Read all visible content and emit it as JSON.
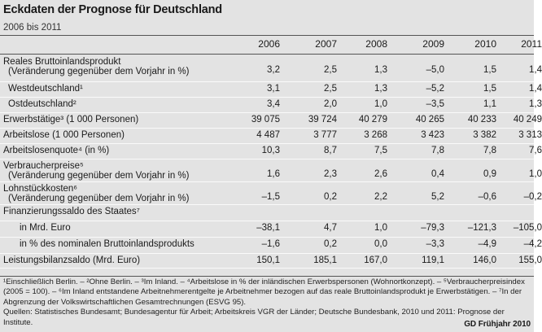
{
  "title": "Eckdaten der Prognose für Deutschland",
  "subtitle": "2006 bis 2011",
  "years": [
    "2006",
    "2007",
    "2008",
    "2009",
    "2010",
    "2011"
  ],
  "rows": [
    {
      "label": "Reales Bruttoinlandsprodukt",
      "sub": "(Veränderung gegenüber dem Vorjahr in %)",
      "indent": 0,
      "values": [
        "3,2",
        "2,5",
        "1,3",
        "–5,0",
        "1,5",
        "1,4"
      ]
    },
    {
      "label": "Westdeutschland¹",
      "sub": "",
      "indent": 1,
      "values": [
        "3,1",
        "2,5",
        "1,3",
        "–5,2",
        "1,5",
        "1,4"
      ]
    },
    {
      "label": "Ostdeutschland²",
      "sub": "",
      "indent": 1,
      "values": [
        "3,4",
        "2,0",
        "1,0",
        "–3,5",
        "1,1",
        "1,3"
      ]
    },
    {
      "label": "Erwerbstätige³ (1 000 Personen)",
      "sub": "",
      "indent": 0,
      "values": [
        "39 075",
        "39 724",
        "40 279",
        "40 265",
        "40 233",
        "40 249"
      ]
    },
    {
      "label": "Arbeitslose (1 000 Personen)",
      "sub": "",
      "indent": 0,
      "values": [
        "4 487",
        "3 777",
        "3 268",
        "3 423",
        "3 382",
        "3 313"
      ]
    },
    {
      "label": "Arbeitslosenquote⁴ (in %)",
      "sub": "",
      "indent": 0,
      "values": [
        "10,3",
        "8,7",
        "7,5",
        "7,8",
        "7,8",
        "7,6"
      ]
    },
    {
      "label": "Verbraucherpreise⁵",
      "sub": "(Veränderung gegenüber dem Vorjahr in %)",
      "indent": 0,
      "values": [
        "1,6",
        "2,3",
        "2,6",
        "0,4",
        "0,9",
        "1,0"
      ]
    },
    {
      "label": "Lohnstückkosten⁶",
      "sub": "(Veränderung gegenüber dem Vorjahr in %)",
      "indent": 0,
      "values": [
        "–1,5",
        "0,2",
        "2,2",
        "5,2",
        "–0,6",
        "–0,2"
      ]
    },
    {
      "label": "Finanzierungssaldo des Staates⁷",
      "sub": "",
      "indent": 0,
      "values": [
        "",
        "",
        "",
        "",
        "",
        ""
      ]
    },
    {
      "label": "in Mrd. Euro",
      "sub": "",
      "indent": 2,
      "values": [
        "–38,1",
        "4,7",
        "1,0",
        "–79,3",
        "–121,3",
        "–105,0"
      ]
    },
    {
      "label": "in % des nominalen Bruttoinlandsprodukts",
      "sub": "",
      "indent": 2,
      "values": [
        "–1,6",
        "0,2",
        "0,0",
        "–3,3",
        "–4,9",
        "–4,2"
      ]
    },
    {
      "label": "Leistungsbilanzsaldo (Mrd. Euro)",
      "sub": "",
      "indent": 0,
      "values": [
        "150,1",
        "185,1",
        "167,0",
        "119,1",
        "146,0",
        "155,0"
      ]
    }
  ],
  "footnotes": [
    "¹Einschließlich Berlin. – ²Ohne Berlin. – ³Im Inland. – ⁴Arbeitslose in % der inländischen Erwerbspersonen (Wohnortkonzept). – ⁵Verbraucherpreisindex (2005 = 100). – ⁶Im Inland entstandene Arbeitnehmerentgelte je Arbeitnehmer bezogen auf das reale Bruttoinlandsprodukt je Erwerbstätigen. – ⁷In der Abgrenzung der Volkswirtschaftlichen Gesamtrechnungen (ESVG 95).",
    "Quellen: Statistisches Bundesamt; Bundesagentur für Arbeit; Arbeitskreis VGR der Länder; Deutsche Bundesbank, 2010 und 2011: Prognose der Institute."
  ],
  "brand": "GD Frühjahr 2010",
  "colors": {
    "panel_bg": "#e3e3e3",
    "rule": "#555555",
    "text": "#1a1a1a"
  }
}
